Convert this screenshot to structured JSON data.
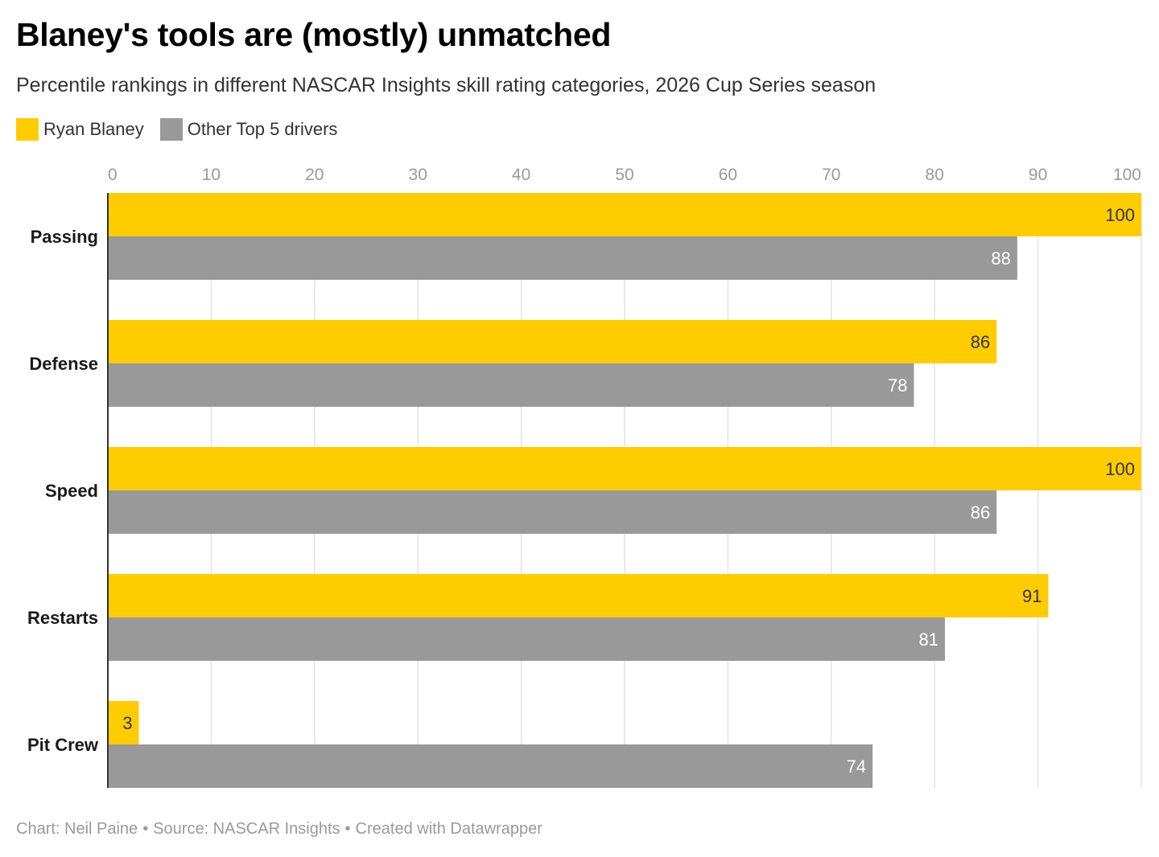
{
  "header": {
    "title": "Blaney's tools are (mostly) unmatched",
    "subtitle": "Percentile rankings in different NASCAR Insights skill rating categories, 2026 Cup Series season"
  },
  "legend": [
    {
      "label": "Ryan Blaney",
      "color": "#ffcc00"
    },
    {
      "label": "Other Top 5 drivers",
      "color": "#999999"
    }
  ],
  "chart_data": {
    "type": "bar",
    "orientation": "horizontal",
    "categories": [
      "Passing",
      "Defense",
      "Speed",
      "Restarts",
      "Pit Crew"
    ],
    "series": [
      {
        "name": "Ryan Blaney",
        "color": "#ffcc00",
        "values": [
          100,
          86,
          100,
          91,
          3
        ],
        "label_color": "#333333"
      },
      {
        "name": "Other Top 5 drivers",
        "color": "#999999",
        "values": [
          88,
          78,
          86,
          81,
          74
        ],
        "label_color": "#ffffff"
      }
    ],
    "xlim": [
      0,
      100
    ],
    "xticks": [
      0,
      10,
      20,
      30,
      40,
      50,
      60,
      70,
      80,
      90,
      100
    ],
    "grid": true,
    "legend_position": "top-left"
  },
  "footer": {
    "chart_credit": "Chart: Neil Paine",
    "source": "Source: NASCAR Insights",
    "created_with": "Created with Datawrapper"
  }
}
